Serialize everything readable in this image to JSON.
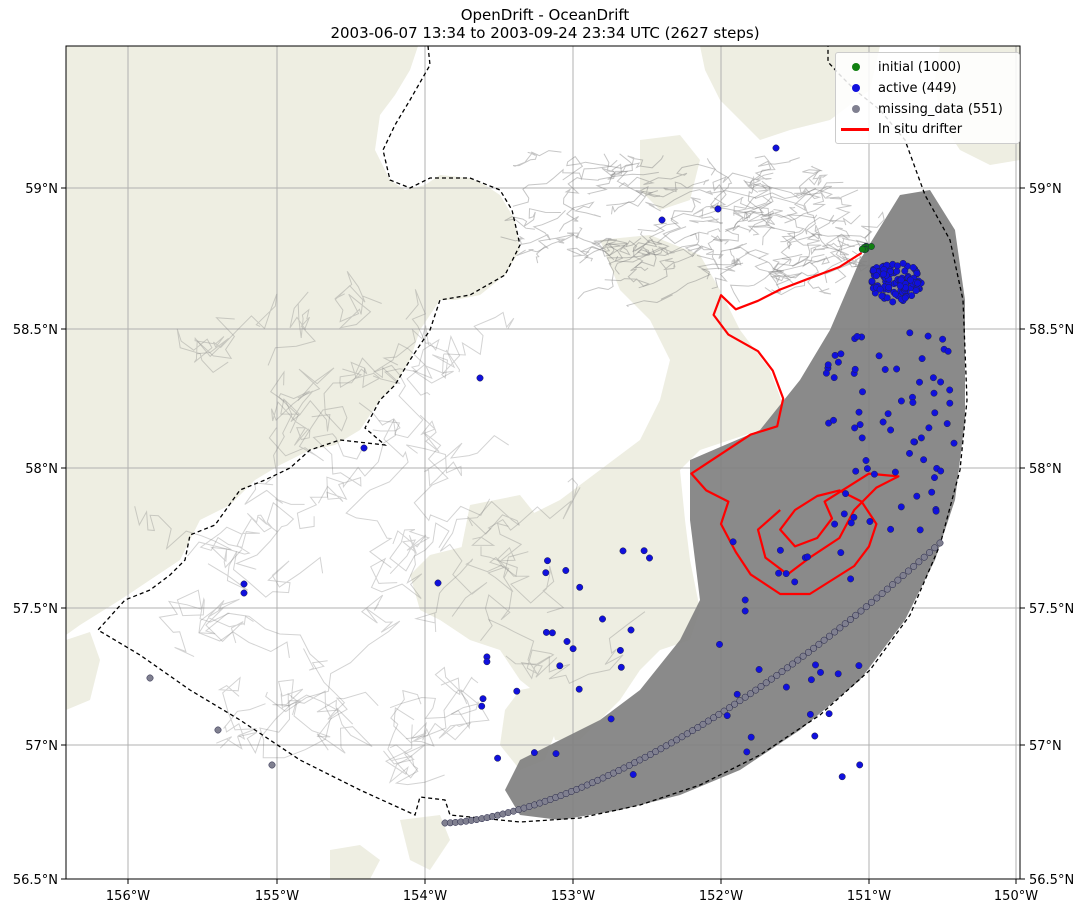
{
  "title": {
    "line1": "OpenDrift - OceanDrift",
    "line2": "2003-06-07 13:34 to 2003-09-24 23:34 UTC (2627 steps)"
  },
  "colors": {
    "land": "#eeeee2",
    "trajectory": "#808080",
    "initial": "#118011",
    "active": "#1010dd",
    "missing": "#808090",
    "drifter": "#ff0000",
    "grid": "#b0b0b0",
    "boundary": "#000000"
  },
  "axes": {
    "lon_ticks": [
      "156°W",
      "155°W",
      "154°W",
      "153°W",
      "152°W",
      "151°W",
      "150°W"
    ],
    "lat_ticks": [
      "56.5°N",
      "57°N",
      "57.5°N",
      "58°N",
      "58.5°N",
      "59°N"
    ],
    "lon_range": [
      -156.42,
      -149.97
    ],
    "lat_range": [
      56.5,
      59.5
    ],
    "grid": true
  },
  "legend": {
    "placement": "top-right",
    "items": [
      {
        "label": "initial (1000)",
        "kind": "dot",
        "color": "#118011"
      },
      {
        "label": "active (449)",
        "kind": "dot",
        "color": "#1010dd"
      },
      {
        "label": "missing_data (551)",
        "kind": "dot",
        "color": "#808090"
      },
      {
        "label": "In situ drifter",
        "kind": "line",
        "color": "#ff0000"
      }
    ]
  },
  "counts": {
    "initial": 1000,
    "active": 449,
    "missing_data": 551
  },
  "in_situ_drifter": {
    "lonlat": [
      [
        -151.05,
        58.77
      ],
      [
        -151.2,
        58.72
      ],
      [
        -151.4,
        58.68
      ],
      [
        -151.6,
        58.64
      ],
      [
        -151.75,
        58.6
      ],
      [
        -151.9,
        58.57
      ],
      [
        -152.0,
        58.62
      ],
      [
        -152.05,
        58.55
      ],
      [
        -151.95,
        58.48
      ],
      [
        -151.75,
        58.42
      ],
      [
        -151.65,
        58.35
      ],
      [
        -151.58,
        58.25
      ],
      [
        -151.62,
        58.15
      ],
      [
        -151.8,
        58.12
      ],
      [
        -152.0,
        58.05
      ],
      [
        -152.2,
        57.98
      ],
      [
        -152.1,
        57.92
      ],
      [
        -151.95,
        57.88
      ],
      [
        -152.0,
        57.8
      ],
      [
        -151.9,
        57.7
      ],
      [
        -151.8,
        57.62
      ],
      [
        -151.6,
        57.55
      ],
      [
        -151.4,
        57.55
      ],
      [
        -151.25,
        57.6
      ],
      [
        -151.1,
        57.65
      ],
      [
        -151.0,
        57.72
      ],
      [
        -150.95,
        57.8
      ],
      [
        -151.05,
        57.88
      ],
      [
        -151.2,
        57.92
      ],
      [
        -151.35,
        57.9
      ],
      [
        -151.5,
        57.85
      ],
      [
        -151.6,
        57.78
      ],
      [
        -151.5,
        57.72
      ],
      [
        -151.35,
        57.75
      ],
      [
        -151.25,
        57.82
      ],
      [
        -151.3,
        57.88
      ],
      [
        -151.0,
        57.98
      ],
      [
        -150.8,
        57.97
      ],
      [
        -150.95,
        57.93
      ],
      [
        -151.1,
        57.85
      ],
      [
        -151.2,
        57.75
      ],
      [
        -151.4,
        57.68
      ],
      [
        -151.55,
        57.62
      ],
      [
        -151.7,
        57.68
      ],
      [
        -151.75,
        57.78
      ],
      [
        -151.6,
        57.85
      ]
    ]
  }
}
